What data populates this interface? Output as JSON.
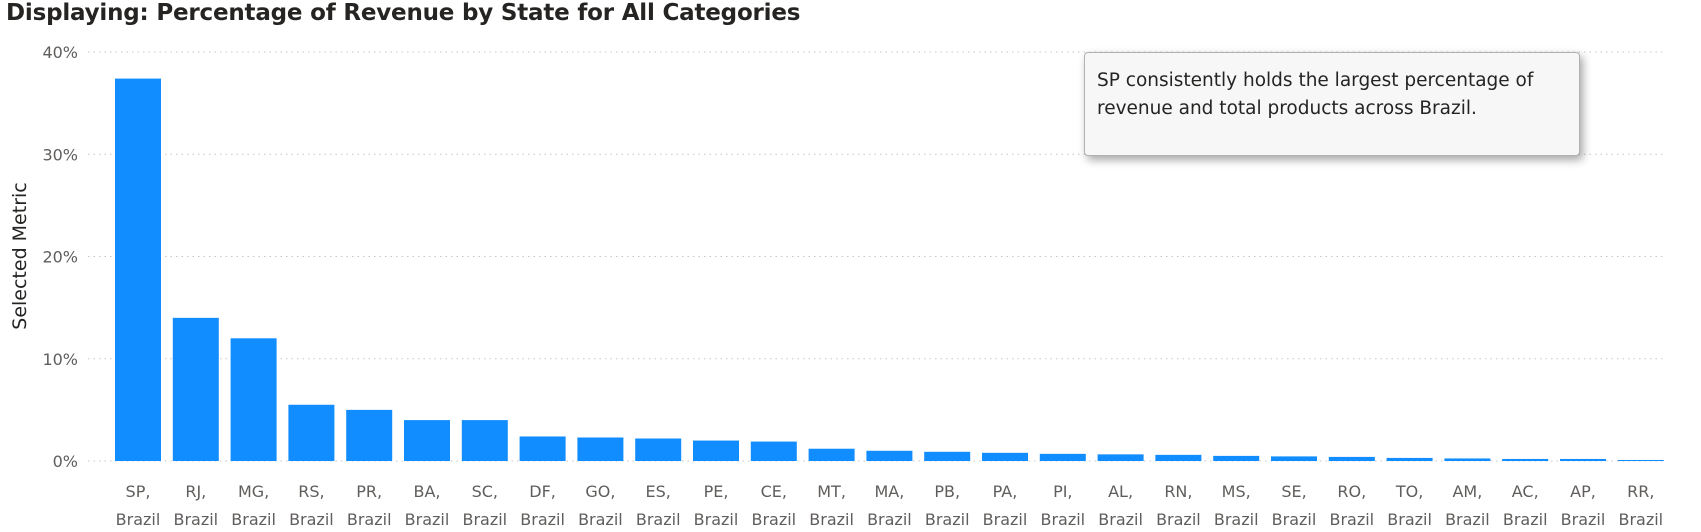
{
  "title": "Displaying: Percentage of Revenue by State for All Categories",
  "annotation": "SP consistently holds the largest percentage of revenue and total products across Brazil.",
  "colors": {
    "bar": "#118dff",
    "grid": "#c8c6c4",
    "axis_text": "#605e5c"
  },
  "chart_data": {
    "type": "bar",
    "title": "Displaying: Percentage of Revenue by State for All Categories",
    "xlabel": "",
    "ylabel": "Selected Metric",
    "ylim": [
      0,
      40
    ],
    "yticks": [
      {
        "value": 0,
        "label": "0%"
      },
      {
        "value": 10,
        "label": "10%"
      },
      {
        "value": 20,
        "label": "20%"
      },
      {
        "value": 30,
        "label": "30%"
      },
      {
        "value": 40,
        "label": "40%"
      }
    ],
    "grid": true,
    "categories": [
      [
        "SP,",
        "Brazil"
      ],
      [
        "RJ,",
        "Brazil"
      ],
      [
        "MG,",
        "Brazil"
      ],
      [
        "RS,",
        "Brazil"
      ],
      [
        "PR,",
        "Brazil"
      ],
      [
        "BA,",
        "Brazil"
      ],
      [
        "SC,",
        "Brazil"
      ],
      [
        "DF,",
        "Brazil"
      ],
      [
        "GO,",
        "Brazil"
      ],
      [
        "ES,",
        "Brazil"
      ],
      [
        "PE,",
        "Brazil"
      ],
      [
        "CE,",
        "Brazil"
      ],
      [
        "MT,",
        "Brazil"
      ],
      [
        "MA,",
        "Brazil"
      ],
      [
        "PB,",
        "Brazil"
      ],
      [
        "PA,",
        "Brazil"
      ],
      [
        "PI,",
        "Brazil"
      ],
      [
        "AL,",
        "Brazil"
      ],
      [
        "RN,",
        "Brazil"
      ],
      [
        "MS,",
        "Brazil"
      ],
      [
        "SE,",
        "Brazil"
      ],
      [
        "RO,",
        "Brazil"
      ],
      [
        "TO,",
        "Brazil"
      ],
      [
        "AM,",
        "Brazil"
      ],
      [
        "AC,",
        "Brazil"
      ],
      [
        "AP,",
        "Brazil"
      ],
      [
        "RR,",
        "Brazil"
      ]
    ],
    "values": [
      37.4,
      14.0,
      12.0,
      5.5,
      5.0,
      4.0,
      4.0,
      2.4,
      2.3,
      2.2,
      2.0,
      1.9,
      1.2,
      1.0,
      0.9,
      0.8,
      0.7,
      0.65,
      0.6,
      0.5,
      0.45,
      0.4,
      0.3,
      0.25,
      0.2,
      0.2,
      0.1
    ]
  }
}
